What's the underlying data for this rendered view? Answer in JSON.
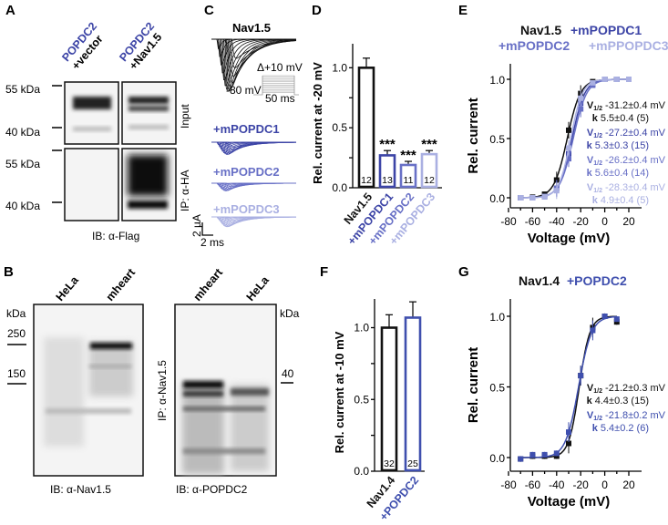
{
  "colors": {
    "black": "#111111",
    "popdc1": "#3c44a6",
    "popdc2": "#6870c6",
    "popdc3": "#aab0e2",
    "popdc2_g": "#3f4fae"
  },
  "panelA": {
    "letter": "A",
    "col1": {
      "protein": "POPDC2",
      "partner": "+vector"
    },
    "col2": {
      "protein": "POPDC2",
      "partner": "+Nav1.5"
    },
    "markers_top": [
      "55 kDa",
      "40 kDa"
    ],
    "markers_bottom": [
      "55 kDa",
      "40 kDa"
    ],
    "row1_label": "Input",
    "row2_label": "IP: α-HA",
    "ib_label": "IB: α-Flag"
  },
  "panelB": {
    "letter": "B",
    "left": {
      "lanes": [
        "HeLa",
        "mheart"
      ],
      "kda": "kDa",
      "markers": [
        "250",
        "150"
      ],
      "ib_label": "IB: α-Nav1.5"
    },
    "right": {
      "lanes": [
        "mheart",
        "HeLa"
      ],
      "kda": "kDa",
      "markers": [
        "40"
      ],
      "ib_label": "IB: α-POPDC2",
      "ip_label": "IP: α-Nav1.5"
    }
  },
  "panelC": {
    "letter": "C",
    "title": "Nav1.5",
    "step_label": "Δ+10 mV",
    "hold_label": "-80 mV",
    "duration_label": "50 ms",
    "traces": [
      "+mPOPDC1",
      "+mPOPDC2",
      "+mPOPDC3"
    ],
    "scale_y": "2 µA",
    "scale_x": "2 ms"
  },
  "chart_data": [
    {
      "panel": "D",
      "type": "bar",
      "ylabel": "Rel. current at -20 mV",
      "ylim": [
        0,
        1.2
      ],
      "yticks": [
        "0.0",
        "0.5",
        "1.0"
      ],
      "categories": [
        "Nav1.5",
        "+mPOPDC1",
        "+mPOPDC2",
        "+mPOPDC3"
      ],
      "values": [
        1.0,
        0.27,
        0.19,
        0.28
      ],
      "errors": [
        0.08,
        0.04,
        0.03,
        0.03
      ],
      "n": [
        "12",
        "13",
        "11",
        "12"
      ],
      "significance": [
        "",
        "***",
        "***",
        "***"
      ]
    },
    {
      "panel": "E",
      "type": "line",
      "title": [
        "Nav1.5",
        "+mPOPDC1",
        "+mPOPDC2",
        "+mPPOPDC3"
      ],
      "xlabel": "Voltage (mV)",
      "ylabel": "Rel. current",
      "xlim": [
        -80,
        20
      ],
      "ylim": [
        -0.05,
        1.2
      ],
      "xticks": [
        "-80",
        "-60",
        "-40",
        "-20",
        "0",
        "20"
      ],
      "yticks": [
        "0.0",
        "0.5",
        "1.0"
      ],
      "x": [
        -70,
        -60,
        -50,
        -40,
        -30,
        -20,
        -10,
        0,
        10,
        20
      ],
      "series": [
        {
          "name": "Nav1.5",
          "v_half": -31.2,
          "k": 5.5,
          "values": [
            0.0,
            0.005,
            0.03,
            0.15,
            0.57,
            0.88,
            0.98,
            1.0,
            1.0,
            1.0
          ],
          "v_label": "-31.2±0.4 mV",
          "k_label": "5.5±0.4 (5)"
        },
        {
          "name": "+mPOPDC1",
          "v_half": -27.2,
          "k": 5.3,
          "values": [
            0.0,
            0.0,
            0.01,
            0.08,
            0.37,
            0.8,
            0.96,
            1.0,
            1.0,
            1.0
          ],
          "v_label": "-27.2±0.4 mV",
          "k_label": "5.3±0.3 (15)"
        },
        {
          "name": "+mPOPDC2",
          "v_half": -26.2,
          "k": 5.6,
          "values": [
            0.0,
            0.0,
            0.01,
            0.08,
            0.33,
            0.75,
            0.95,
            1.0,
            1.0,
            1.0
          ],
          "v_label": "-26.2±0.4 mV",
          "k_label": "5.6±0.4 (14)"
        },
        {
          "name": "+mPPOPDC3",
          "v_half": -28.3,
          "k": 4.9,
          "values": [
            0.0,
            0.0,
            0.01,
            0.06,
            0.42,
            0.84,
            0.97,
            1.0,
            1.0,
            1.0
          ],
          "v_label": "-28.3±0.4 mV",
          "k_label": "4.9±0.4 (5)"
        }
      ],
      "vhalf_prefix": "V",
      "vhalf_sub": "1/2",
      "k_prefix": "k"
    },
    {
      "panel": "F",
      "type": "bar",
      "ylabel": "Rel. current at -10 mV",
      "ylim": [
        0,
        1.2
      ],
      "yticks": [
        "0.0",
        "0.5",
        "1.0"
      ],
      "categories": [
        "Nav1.4",
        "+POPDC2"
      ],
      "values": [
        1.0,
        1.07
      ],
      "errors": [
        0.09,
        0.11
      ],
      "n": [
        "32",
        "25"
      ]
    },
    {
      "panel": "G",
      "type": "line",
      "title": [
        "Nav1.4",
        "+POPDC2"
      ],
      "xlabel": "Voltage (mV)",
      "ylabel": "Rel. current",
      "xlim": [
        -80,
        20
      ],
      "ylim": [
        -0.05,
        1.2
      ],
      "xticks": [
        "-80",
        "-60",
        "-40",
        "-20",
        "0",
        "20"
      ],
      "yticks": [
        "0.0",
        "0.5",
        "1.0"
      ],
      "x": [
        -70,
        -60,
        -50,
        -40,
        -30,
        -20,
        -10,
        0,
        10
      ],
      "series": [
        {
          "name": "Nav1.4",
          "v_half": -21.2,
          "k": 4.4,
          "values": [
            -0.01,
            0.01,
            0.01,
            0.01,
            0.1,
            0.58,
            0.92,
            1.0,
            0.96
          ],
          "v_label": "-21.2±0.3 mV",
          "k_label": "4.4±0.3 (15)"
        },
        {
          "name": "+POPDC2",
          "v_half": -21.8,
          "k": 5.4,
          "values": [
            -0.01,
            0.02,
            0.02,
            0.03,
            0.18,
            0.58,
            0.9,
            1.0,
            0.98
          ],
          "v_label": "-21.8±0.2 mV",
          "k_label": "5.4±0.2 (6)"
        }
      ],
      "vhalf_prefix": "V",
      "vhalf_sub": "1/2",
      "k_prefix": "k"
    }
  ],
  "panel_letters": {
    "D": "D",
    "E": "E",
    "F": "F",
    "G": "G"
  }
}
